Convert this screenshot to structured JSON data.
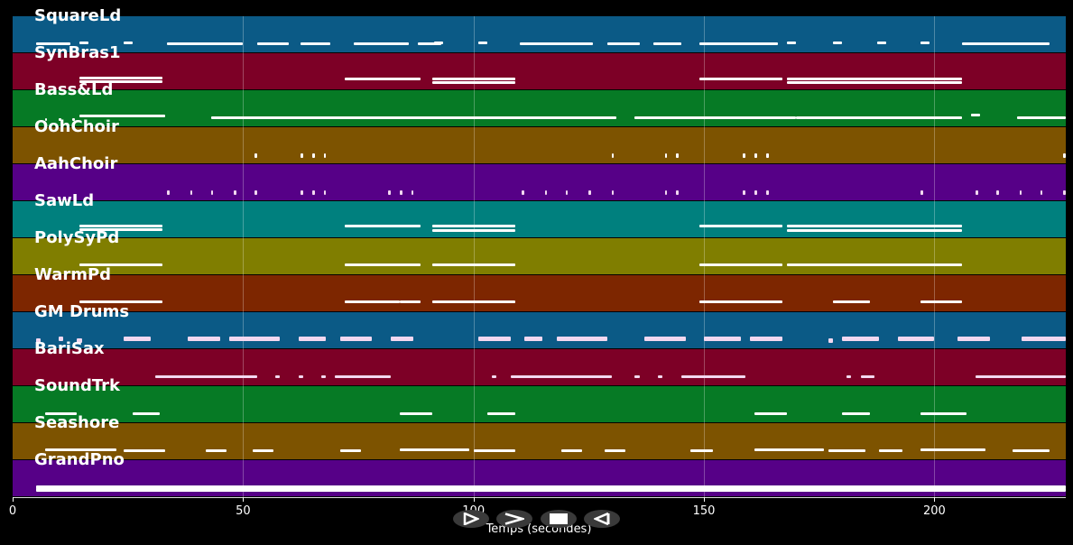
{
  "chart_data": {
    "type": "piano-roll / timeline",
    "title": "",
    "xlabel": "Temps (secondes)",
    "ylabel": "",
    "xlim": [
      0,
      228.5
    ],
    "xticks": [
      0,
      50,
      100,
      150,
      200
    ],
    "grid": true,
    "tracks": [
      {
        "name": "SquareLd",
        "color": "#0b5a86",
        "notes": [
          [
            5,
            12.5,
            0
          ],
          [
            14.5,
            16.5,
            -1
          ],
          [
            24,
            26,
            -1
          ],
          [
            33.5,
            50,
            0
          ],
          [
            53,
            60,
            0
          ],
          [
            62.5,
            69,
            0
          ],
          [
            74,
            86,
            0
          ],
          [
            88,
            93,
            0
          ],
          [
            91.5,
            93.5,
            -1
          ],
          [
            101,
            103,
            -1
          ],
          [
            110,
            126,
            0
          ],
          [
            129,
            136,
            0
          ],
          [
            139,
            145,
            0
          ],
          [
            149,
            166,
            0
          ],
          [
            168,
            170,
            -1
          ],
          [
            178,
            180,
            -1
          ],
          [
            187.5,
            189.5,
            -1
          ],
          [
            197,
            199,
            -1
          ],
          [
            206,
            225,
            0
          ]
        ]
      },
      {
        "name": "SynBras1",
        "color": "#7d0026",
        "notes": [
          [
            14.5,
            32.5,
            -3
          ],
          [
            14.5,
            32.5,
            1
          ],
          [
            72,
            86.5,
            -2
          ],
          [
            84,
            88.5,
            -2
          ],
          [
            91,
            109,
            -2
          ],
          [
            91,
            109,
            2
          ],
          [
            149,
            163,
            -2
          ],
          [
            161,
            167,
            -2
          ],
          [
            168,
            206,
            -2
          ],
          [
            168,
            206,
            2
          ]
        ]
      },
      {
        "name": "Bass&Ld",
        "color": "#067a25",
        "notes": [
          [
            7,
            7.5,
            2
          ],
          [
            10,
            10.5,
            2
          ],
          [
            13,
            13.5,
            2
          ],
          [
            14.5,
            33,
            -2
          ],
          [
            43,
            131,
            0
          ],
          [
            135,
            170,
            0
          ],
          [
            170,
            206,
            0
          ],
          [
            208,
            210,
            -3
          ],
          [
            218,
            228.5,
            0
          ]
        ]
      },
      {
        "name": "OohChoir",
        "color": "#7d5300",
        "notes": [
          [
            52.5,
            53,
            0
          ],
          [
            62.5,
            63,
            0
          ],
          [
            65,
            65.5,
            0
          ],
          [
            67.5,
            68,
            0
          ],
          [
            130,
            130.5,
            0
          ],
          [
            141.5,
            142,
            0
          ],
          [
            144,
            144.5,
            0
          ],
          [
            158.5,
            159,
            0
          ],
          [
            161,
            161.5,
            0
          ],
          [
            163.5,
            164,
            0
          ],
          [
            228,
            228.5,
            0
          ]
        ]
      },
      {
        "name": "AahChoir",
        "color": "#560087",
        "notes": [
          [
            33.5,
            34,
            0
          ],
          [
            38.5,
            39,
            0
          ],
          [
            43,
            43.5,
            0
          ],
          [
            48,
            48.5,
            0
          ],
          [
            52.5,
            53,
            0
          ],
          [
            62.5,
            63,
            0
          ],
          [
            65,
            65.5,
            0
          ],
          [
            67.5,
            68,
            0
          ],
          [
            81.5,
            82,
            0
          ],
          [
            84,
            84.5,
            0
          ],
          [
            86.5,
            87,
            0
          ],
          [
            110.5,
            111,
            0
          ],
          [
            115.5,
            116,
            0
          ],
          [
            120,
            120.5,
            0
          ],
          [
            125,
            125.5,
            0
          ],
          [
            130,
            130.5,
            0
          ],
          [
            141.5,
            142,
            0
          ],
          [
            144,
            144.5,
            0
          ],
          [
            158.5,
            159,
            0
          ],
          [
            161,
            161.5,
            0
          ],
          [
            163.5,
            164,
            0
          ],
          [
            197,
            197.5,
            0
          ],
          [
            209,
            209.5,
            0
          ],
          [
            213.5,
            214,
            0
          ],
          [
            218.5,
            219,
            0
          ],
          [
            223,
            223.5,
            0
          ],
          [
            228,
            228.5,
            0
          ]
        ]
      },
      {
        "name": "SawLd",
        "color": "#00807e",
        "notes": [
          [
            14.5,
            32.5,
            -3
          ],
          [
            14.5,
            32.5,
            1
          ],
          [
            72,
            86.5,
            -3
          ],
          [
            84,
            88.5,
            -3
          ],
          [
            91,
            109,
            -3
          ],
          [
            91,
            109,
            2
          ],
          [
            149,
            163,
            -3
          ],
          [
            161,
            167,
            -3
          ],
          [
            168,
            206,
            -3
          ],
          [
            168,
            206,
            2
          ]
        ]
      },
      {
        "name": "PolySyPd",
        "color": "#807e00",
        "notes": [
          [
            14.5,
            32.5,
            -1
          ],
          [
            72,
            86.5,
            -1
          ],
          [
            84,
            88.5,
            -1
          ],
          [
            91,
            109,
            -1
          ],
          [
            149,
            163,
            -1
          ],
          [
            161,
            167,
            -1
          ],
          [
            168,
            206,
            -1
          ]
        ]
      },
      {
        "name": "WarmPd",
        "color": "#7d2600",
        "notes": [
          [
            14.5,
            32.5,
            -1
          ],
          [
            72,
            84,
            -1
          ],
          [
            84,
            88.5,
            -1
          ],
          [
            91,
            109,
            -1
          ],
          [
            149,
            163,
            -1
          ],
          [
            161,
            167,
            -1
          ],
          [
            178,
            186,
            -1
          ],
          [
            197,
            206,
            -1
          ]
        ]
      },
      {
        "name": "GM Drums",
        "color": "#0b5a86",
        "notes": [
          [
            5,
            6,
            0
          ],
          [
            10,
            11,
            -2
          ],
          [
            14,
            15,
            0
          ],
          [
            24,
            30,
            -2
          ],
          [
            38,
            45,
            -2
          ],
          [
            47,
            53,
            -2
          ],
          [
            52,
            58,
            -2
          ],
          [
            62,
            68,
            -2
          ],
          [
            71,
            78,
            -2
          ],
          [
            82,
            87,
            -2
          ],
          [
            101,
            108,
            -2
          ],
          [
            111,
            115,
            -2
          ],
          [
            118,
            129,
            -2
          ],
          [
            137,
            146,
            -2
          ],
          [
            150,
            158,
            -2
          ],
          [
            160,
            167,
            -2
          ],
          [
            177,
            178,
            0
          ],
          [
            180,
            188,
            -2
          ],
          [
            192,
            200,
            -2
          ],
          [
            205,
            212,
            -2
          ],
          [
            219,
            228.5,
            -2
          ]
        ]
      },
      {
        "name": "BariSax",
        "color": "#7d0026",
        "notes": [
          [
            31,
            53,
            0
          ],
          [
            57,
            58,
            0
          ],
          [
            62,
            63,
            0
          ],
          [
            67,
            68,
            0
          ],
          [
            70,
            82,
            0
          ],
          [
            104,
            105,
            0
          ],
          [
            108,
            130,
            0
          ],
          [
            135,
            136,
            0
          ],
          [
            140,
            141,
            0
          ],
          [
            145,
            159,
            0
          ],
          [
            181,
            182,
            0
          ],
          [
            184,
            187,
            0
          ],
          [
            209,
            228.5,
            0
          ]
        ]
      },
      {
        "name": "SoundTrk",
        "color": "#067a25",
        "notes": [
          [
            7,
            14,
            0
          ],
          [
            26,
            32,
            0
          ],
          [
            84,
            91,
            0
          ],
          [
            103,
            109,
            0
          ],
          [
            161,
            168,
            0
          ],
          [
            180,
            186,
            0
          ],
          [
            197,
            207,
            0
          ]
        ]
      },
      {
        "name": "Seashore",
        "color": "#7d5300",
        "notes": [
          [
            7,
            22.5,
            -1
          ],
          [
            24,
            33,
            0
          ],
          [
            42,
            46.5,
            0
          ],
          [
            52,
            56.5,
            0
          ],
          [
            71,
            75.5,
            0
          ],
          [
            84,
            99,
            -1
          ],
          [
            100,
            109,
            0
          ],
          [
            119,
            123.5,
            0
          ],
          [
            128.5,
            133,
            0
          ],
          [
            147,
            152,
            0
          ],
          [
            161,
            176,
            -1
          ],
          [
            177,
            185,
            0
          ],
          [
            188,
            193,
            0
          ],
          [
            197,
            211,
            -1
          ],
          [
            217,
            225,
            0
          ]
        ]
      },
      {
        "name": "GrandPno",
        "color": "#560087",
        "notes": [
          [
            5,
            228.5,
            -1
          ],
          [
            5,
            228.5,
            2
          ]
        ]
      }
    ]
  },
  "axis": {
    "xlabel": "Temps (secondes)",
    "ticks": [
      {
        "value": 0,
        "label": "0"
      },
      {
        "value": 50,
        "label": "50"
      },
      {
        "value": 100,
        "label": "100"
      },
      {
        "value": 150,
        "label": "150"
      },
      {
        "value": 200,
        "label": "200"
      }
    ]
  },
  "controls": [
    {
      "name": "play-from-start-button",
      "icon": "play-outline-icon"
    },
    {
      "name": "play-button",
      "icon": "chevron-right-icon"
    },
    {
      "name": "stop-button",
      "icon": "stop-square-icon"
    },
    {
      "name": "rewind-button",
      "icon": "triangle-left-icon"
    }
  ]
}
